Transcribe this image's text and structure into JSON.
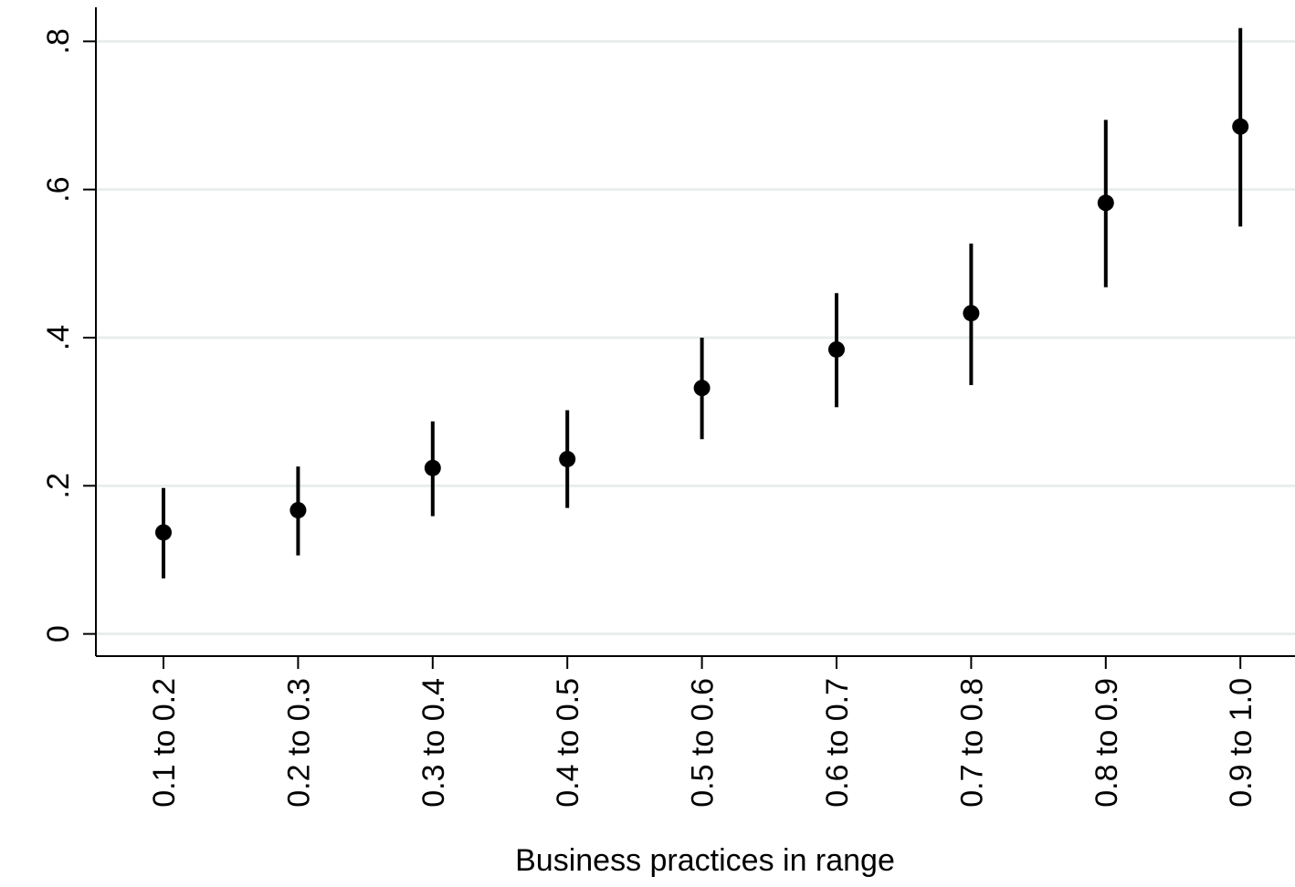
{
  "chart_data": {
    "type": "scatter",
    "xlabel": "Business practices in range",
    "ylabel": "",
    "categories": [
      "0.1 to 0.2",
      "0.2 to 0.3",
      "0.3 to 0.4",
      "0.4 to 0.5",
      "0.5 to 0.6",
      "0.6 to 0.7",
      "0.7 to 0.8",
      "0.8 to 0.9",
      "0.9 to 1.0"
    ],
    "yticks": [
      0,
      0.2,
      0.4,
      0.6,
      0.8
    ],
    "ytick_labels": [
      "0",
      ".2",
      ".4",
      ".6",
      ".8"
    ],
    "ylim": [
      -0.03,
      0.846
    ],
    "grid": "horizontal",
    "series": [
      {
        "values": [
          0.137,
          0.167,
          0.224,
          0.236,
          0.332,
          0.384,
          0.433,
          0.582,
          0.685
        ],
        "ci_lower": [
          0.075,
          0.106,
          0.159,
          0.17,
          0.263,
          0.306,
          0.336,
          0.468,
          0.55
        ],
        "ci_upper": [
          0.197,
          0.226,
          0.287,
          0.302,
          0.4,
          0.46,
          0.527,
          0.694,
          0.818
        ]
      }
    ],
    "colors": {
      "marker": "#000000",
      "gridline": "#e8eeee",
      "axis": "#000000"
    }
  }
}
